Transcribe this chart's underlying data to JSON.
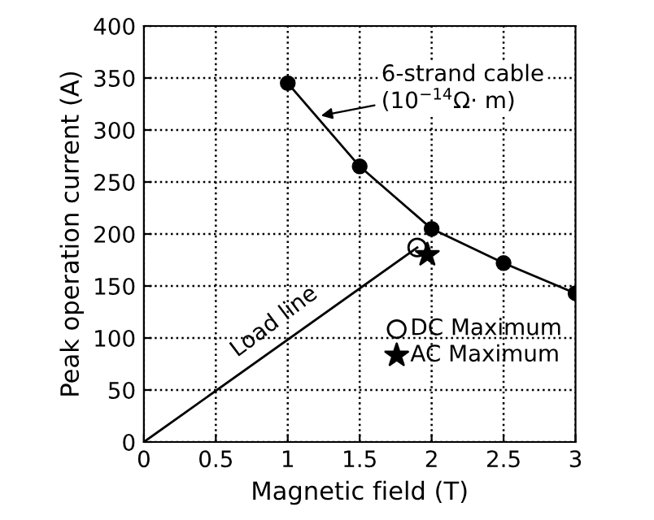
{
  "chart_data": {
    "type": "line",
    "xlabel": "Magnetic field (T)",
    "ylabel": "Peak operation current (A)",
    "xlim": [
      0,
      3
    ],
    "ylim": [
      0,
      400
    ],
    "xticks": [
      0,
      0.5,
      1,
      1.5,
      2,
      2.5,
      3
    ],
    "yticks": [
      0,
      50,
      100,
      150,
      200,
      250,
      300,
      350,
      400
    ],
    "grid": true,
    "legend": "bottom right",
    "series": [
      {
        "color": "#000000",
        "marker": "circle",
        "x": [
          1,
          1.5,
          2,
          2.5,
          3
        ],
        "values": [
          345,
          265,
          205,
          172,
          143
        ]
      },
      {
        "type": "line",
        "color": "#000000",
        "marker": "none",
        "x": [
          0,
          1.9
        ],
        "values": [
          0,
          187
        ]
      },
      {
        "type": "scatter",
        "name": "DC Maximum",
        "color": "#000000",
        "marker": "circle",
        "x": [
          1.9
        ],
        "values": [
          187
        ]
      },
      {
        "type": "scatter",
        "name": "AC Maximum",
        "color": "#000000",
        "marker": "star",
        "x": [
          1.97
        ],
        "values": [
          180
        ]
      }
    ],
    "annotations": [
      {
        "text": "6-strand cable\n(10$^{−14}$Ω· m)",
        "x": 1.2,
        "y": 313
      },
      {
        "text": "Load line",
        "x": 1.0,
        "y": 98
      }
    ]
  }
}
